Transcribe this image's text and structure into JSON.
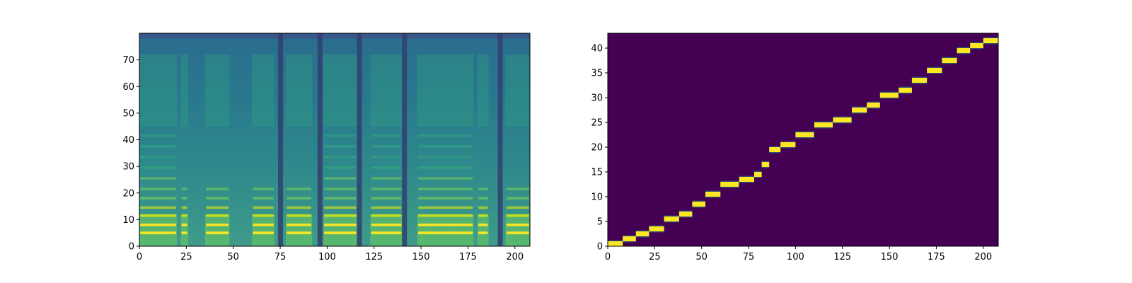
{
  "chart_data": [
    {
      "type": "heatmap",
      "title": "",
      "xlabel": "",
      "ylabel": "",
      "xlim": [
        0,
        208
      ],
      "ylim": [
        0,
        80
      ],
      "x_ticks": [
        "0",
        "25",
        "50",
        "75",
        "100",
        "125",
        "150",
        "175",
        "200"
      ],
      "y_ticks": [
        "0",
        "10",
        "20",
        "30",
        "40",
        "50",
        "60",
        "70"
      ],
      "colormap": "viridis",
      "description": "",
      "voiced_segments": [
        [
          0,
          20
        ],
        [
          22,
          26
        ],
        [
          35,
          48
        ],
        [
          60,
          72
        ],
        [
          78,
          92
        ],
        [
          98,
          116
        ],
        [
          123,
          140
        ],
        [
          148,
          178
        ],
        [
          180,
          186
        ],
        [
          195,
          208
        ]
      ],
      "silences": [
        75,
        96,
        117,
        141,
        192
      ]
    },
    {
      "type": "heatmap",
      "title": "",
      "xlabel": "",
      "ylabel": "",
      "xlim": [
        0,
        208
      ],
      "ylim": [
        0,
        43
      ],
      "x_ticks": [
        "0",
        "25",
        "50",
        "75",
        "100",
        "125",
        "150",
        "175",
        "200"
      ],
      "y_ticks": [
        "0",
        "5",
        "10",
        "15",
        "20",
        "25",
        "30",
        "35",
        "40"
      ],
      "colormap": "viridis",
      "alignment_path": [
        [
          0,
          0
        ],
        [
          8,
          1
        ],
        [
          15,
          2
        ],
        [
          22,
          3
        ],
        [
          30,
          5
        ],
        [
          38,
          6
        ],
        [
          45,
          8
        ],
        [
          52,
          10
        ],
        [
          60,
          12
        ],
        [
          70,
          13
        ],
        [
          78,
          14
        ],
        [
          82,
          16
        ],
        [
          86,
          19
        ],
        [
          92,
          20
        ],
        [
          100,
          22
        ],
        [
          110,
          24
        ],
        [
          120,
          25
        ],
        [
          130,
          27
        ],
        [
          138,
          28
        ],
        [
          145,
          30
        ],
        [
          155,
          31
        ],
        [
          162,
          33
        ],
        [
          170,
          35
        ],
        [
          178,
          37
        ],
        [
          186,
          39
        ],
        [
          193,
          40
        ],
        [
          200,
          41
        ],
        [
          208,
          42
        ]
      ]
    }
  ]
}
